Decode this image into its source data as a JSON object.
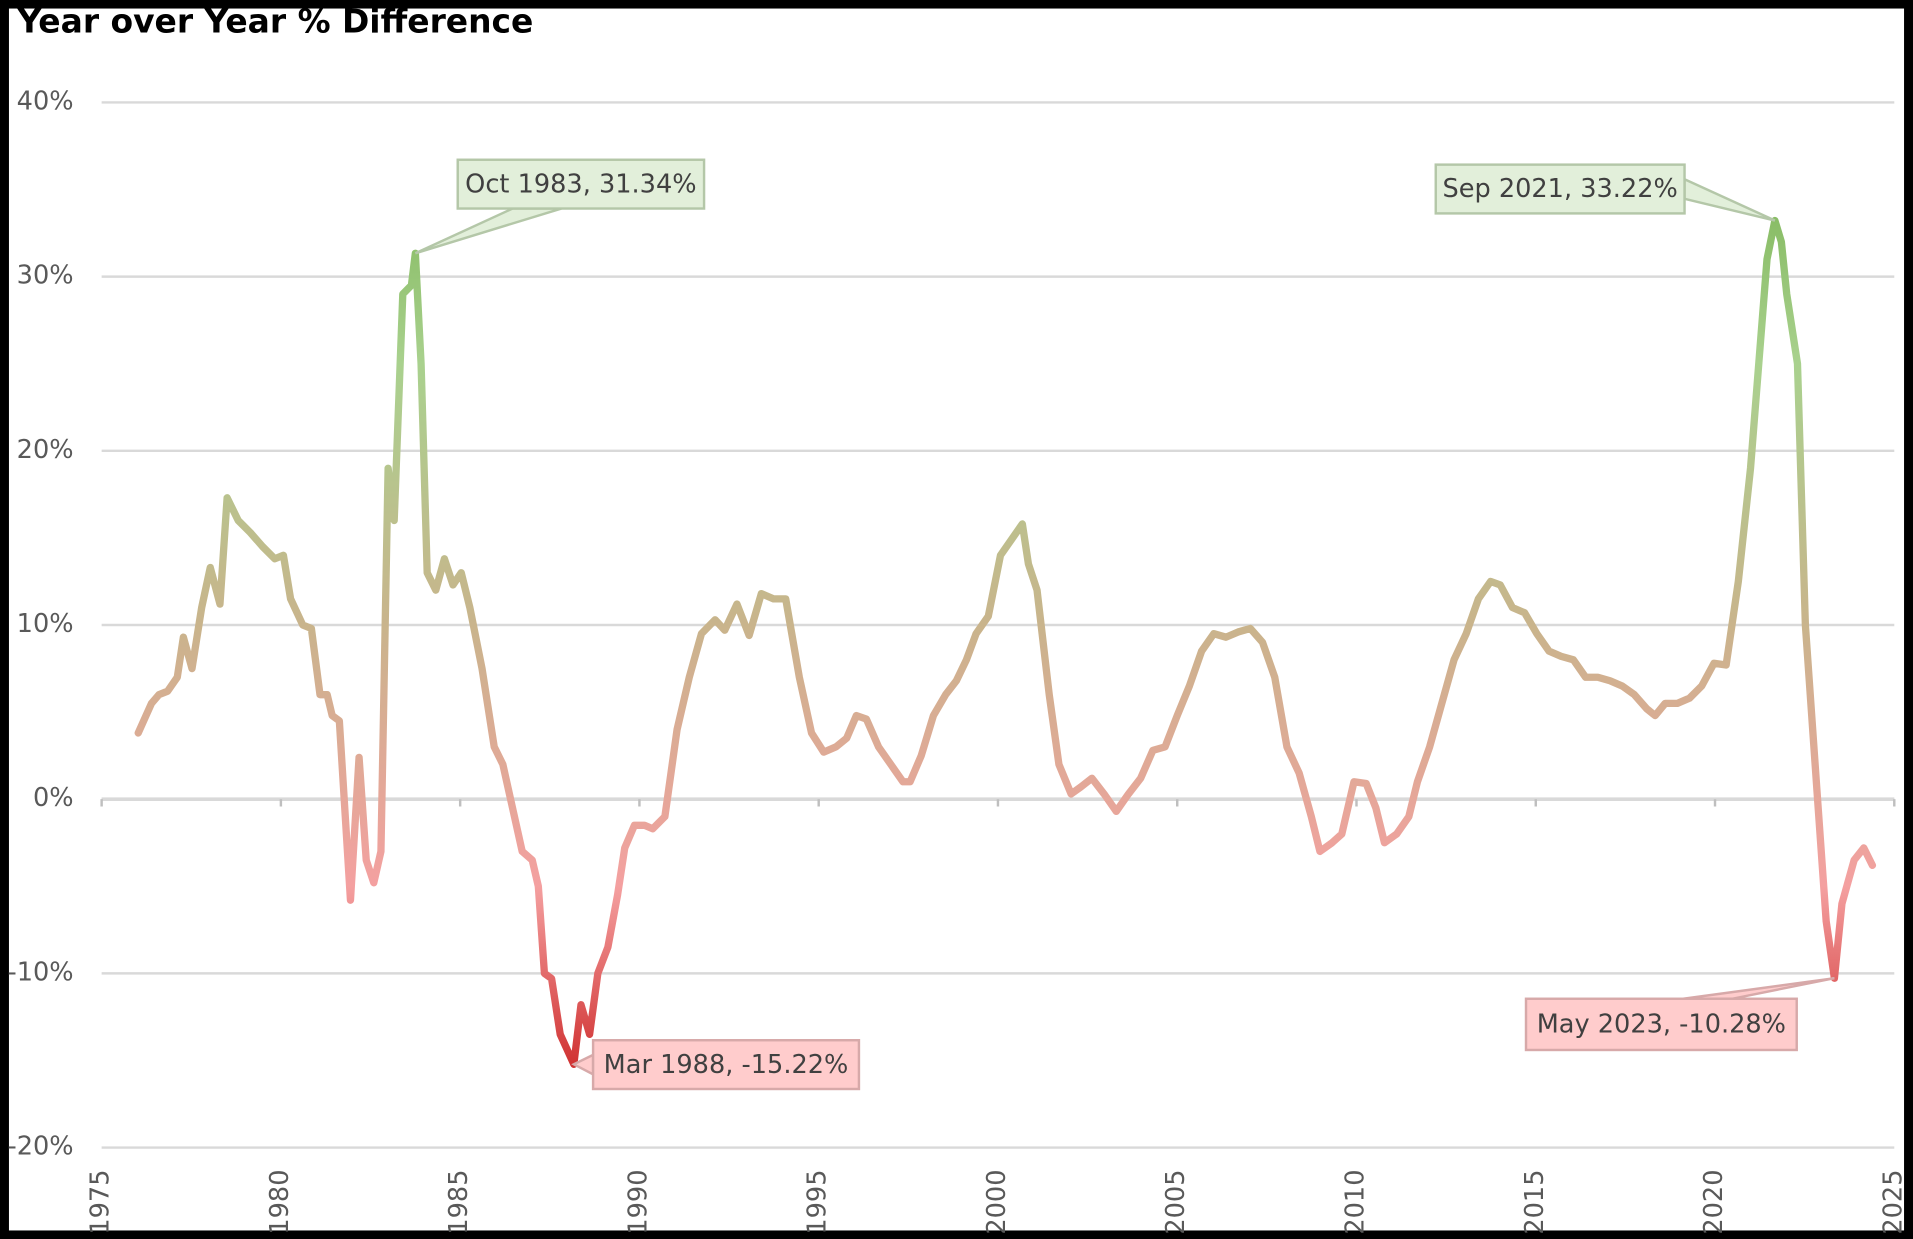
{
  "chart_data": {
    "type": "line",
    "title": "Year over Year % Difference",
    "xlim": [
      1975,
      2025
    ],
    "xticks": [
      1975,
      1980,
      1985,
      1990,
      1995,
      2000,
      2005,
      2010,
      2015,
      2020,
      2025
    ],
    "ylim": [
      -20,
      40
    ],
    "yticks": [
      {
        "value": -20,
        "label": "-20%"
      },
      {
        "value": -10,
        "label": "-10%"
      },
      {
        "value": 0,
        "label": "0%"
      },
      {
        "value": 10,
        "label": "10%"
      },
      {
        "value": 20,
        "label": "20%"
      },
      {
        "value": 30,
        "label": "30%"
      },
      {
        "value": 40,
        "label": "40%"
      }
    ],
    "grid": true,
    "line_colors": [
      "#c00000",
      "#f4a0a0",
      "#c9b48c",
      "#a9d18e",
      "#70ad47"
    ],
    "x": [
      1976.02,
      1976.39,
      1976.6,
      1976.84,
      1977.11,
      1977.28,
      1977.52,
      1977.79,
      1978.03,
      1978.3,
      1978.5,
      1978.81,
      1979.15,
      1979.49,
      1979.83,
      1980.07,
      1980.27,
      1980.61,
      1980.85,
      1981.09,
      1981.29,
      1981.43,
      1981.63,
      1981.94,
      1982.18,
      1982.38,
      1982.59,
      1982.79,
      1982.99,
      1983.16,
      1983.4,
      1983.64,
      1983.75,
      1983.91,
      1984.08,
      1984.32,
      1984.56,
      1984.8,
      1985.03,
      1985.27,
      1985.61,
      1985.95,
      1986.19,
      1986.46,
      1986.73,
      1987.01,
      1987.18,
      1987.35,
      1987.55,
      1987.79,
      1988.17,
      1988.37,
      1988.61,
      1988.84,
      1989.12,
      1989.39,
      1989.59,
      1989.86,
      1990.14,
      1990.37,
      1990.71,
      1991.05,
      1991.39,
      1991.73,
      1992.11,
      1992.38,
      1992.72,
      1993.06,
      1993.4,
      1993.74,
      1994.08,
      1994.46,
      1994.8,
      1995.14,
      1995.48,
      1995.78,
      1996.05,
      1996.33,
      1996.67,
      1997.01,
      1997.35,
      1997.55,
      1997.86,
      1998.2,
      1998.54,
      1998.84,
      1999.12,
      1999.39,
      1999.73,
      2000.07,
      2000.41,
      2000.68,
      2000.85,
      2001.09,
      2001.43,
      2001.7,
      2002.04,
      2002.31,
      2002.62,
      2002.96,
      2003.3,
      2003.64,
      2003.98,
      2004.32,
      2004.66,
      2005.0,
      2005.34,
      2005.68,
      2006.02,
      2006.36,
      2006.7,
      2007.04,
      2007.38,
      2007.72,
      2008.06,
      2008.4,
      2008.74,
      2008.98,
      2009.32,
      2009.59,
      2009.93,
      2010.27,
      2010.54,
      2010.78,
      2011.12,
      2011.46,
      2011.7,
      2012.04,
      2012.38,
      2012.72,
      2013.06,
      2013.4,
      2013.74,
      2014.01,
      2014.35,
      2014.69,
      2015.03,
      2015.37,
      2015.71,
      2016.05,
      2016.39,
      2016.73,
      2017.07,
      2017.41,
      2017.75,
      2018.09,
      2018.33,
      2018.61,
      2018.95,
      2019.29,
      2019.63,
      2019.97,
      2020.31,
      2020.65,
      2020.99,
      2021.45,
      2021.67,
      2021.85,
      2022.0,
      2022.3,
      2022.52,
      2022.86,
      2023.1,
      2023.33,
      2023.54,
      2023.88,
      2024.15,
      2024.39
    ],
    "series": [
      {
        "values": [
          3.8,
          5.5,
          6,
          6.2,
          7,
          9.3,
          7.5,
          11,
          13.3,
          11.2,
          17.3,
          16,
          15.3,
          14.5,
          13.8,
          14,
          11.5,
          10,
          9.8,
          6,
          6,
          4.8,
          4.5,
          -5.8,
          2.4,
          -3.5,
          -4.8,
          -3,
          19,
          16,
          29,
          29.5,
          31.34,
          25,
          13,
          12,
          13.8,
          12.3,
          13,
          11,
          7.5,
          3,
          2,
          -0.5,
          -3,
          -3.5,
          -5,
          -10,
          -10.3,
          -13.5,
          -15.22,
          -11.8,
          -13.5,
          -10,
          -8.5,
          -5.5,
          -2.8,
          -1.5,
          -1.5,
          -1.7,
          -1,
          4,
          7,
          9.5,
          10.3,
          9.7,
          11.2,
          9.4,
          11.8,
          11.5,
          11.5,
          7,
          3.8,
          2.7,
          3,
          3.5,
          4.8,
          4.6,
          3,
          2,
          1,
          1,
          2.5,
          4.8,
          6,
          6.8,
          8,
          9.5,
          10.5,
          14,
          15,
          15.8,
          13.5,
          12,
          6,
          2,
          0.3,
          0.7,
          1.2,
          0.3,
          -0.7,
          0.3,
          1.2,
          2.8,
          3,
          4.8,
          6.5,
          8.5,
          9.5,
          9.3,
          9.6,
          9.8,
          9,
          7,
          3,
          1.5,
          -1,
          -3,
          -2.5,
          -2,
          1,
          0.9,
          -0.5,
          -2.5,
          -2,
          -1,
          1,
          3,
          5.5,
          8,
          9.5,
          11.5,
          12.5,
          12.3,
          11,
          10.7,
          9.5,
          8.5,
          8.2,
          8,
          7,
          7,
          6.8,
          6.5,
          6,
          5.2,
          4.8,
          5.5,
          5.5,
          5.8,
          6.5,
          7.8,
          7.7,
          12.5,
          19,
          31,
          33.22,
          32,
          29,
          25,
          10,
          0,
          -7,
          -10.28,
          -6,
          -3.5,
          -2.8,
          -3.8
        ]
      }
    ],
    "annotations": [
      {
        "label": "Oct 1983, 31.34%",
        "x": 1983.75,
        "y": 31.34,
        "fill": "#e2efda",
        "border": "#b4c7a8"
      },
      {
        "label": "Sep 2021, 33.22%",
        "x": 2021.67,
        "y": 33.22,
        "fill": "#e2efda",
        "border": "#b4c7a8"
      },
      {
        "label": "Mar 1988, -15.22%",
        "x": 1988.17,
        "y": -15.22,
        "fill": "#ffcccc",
        "border": "#d7a9a9"
      },
      {
        "label": "May 2023, -10.28%",
        "x": 2023.33,
        "y": -10.28,
        "fill": "#ffcccc",
        "border": "#d7a9a9"
      }
    ]
  }
}
